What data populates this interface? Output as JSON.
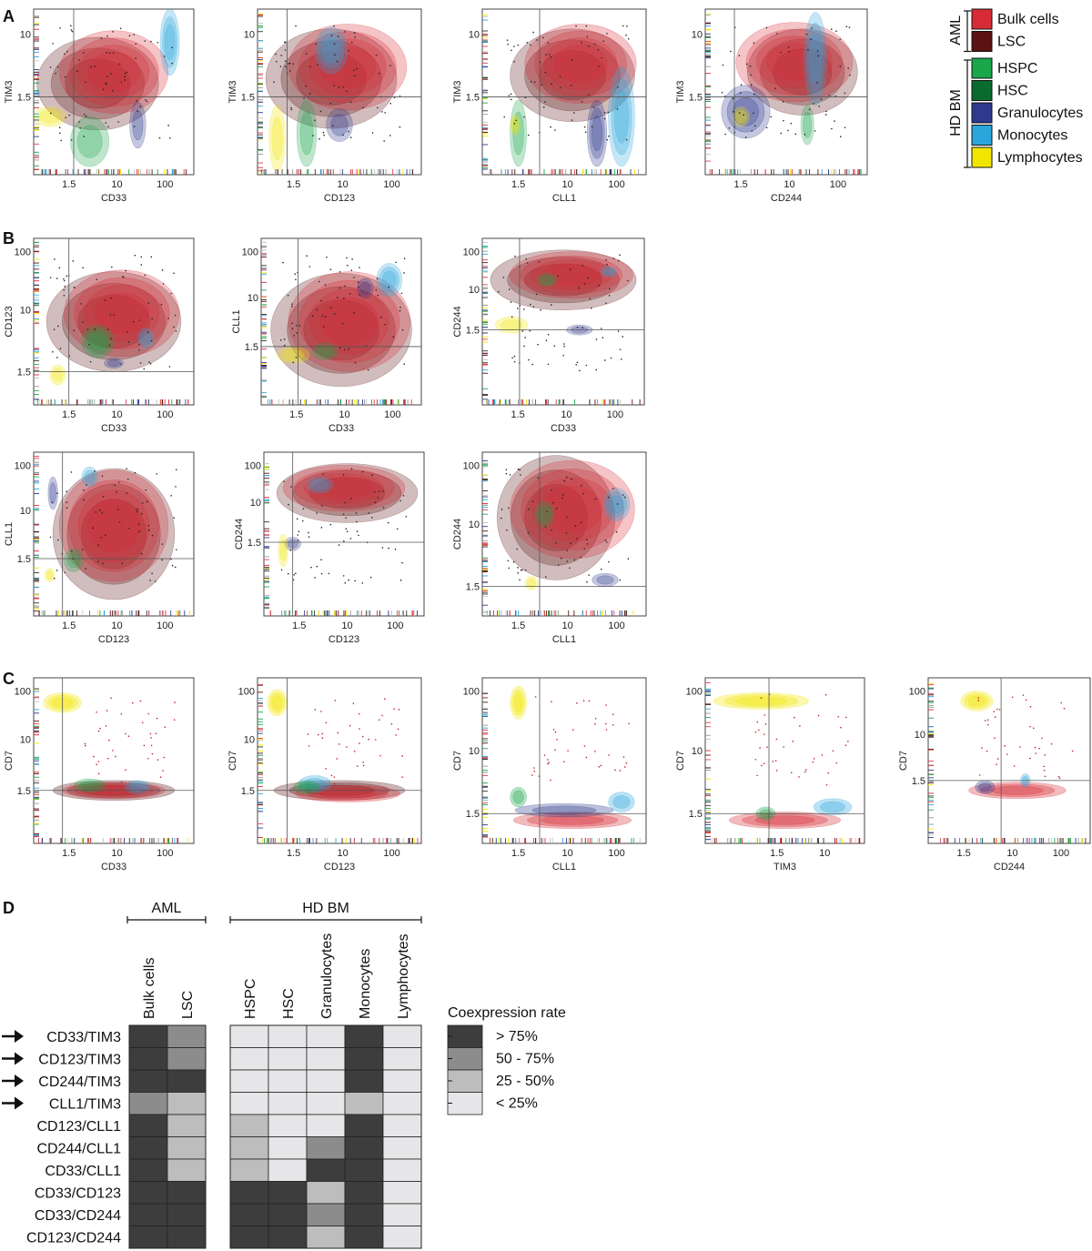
{
  "panel_labels": [
    "A",
    "B",
    "C",
    "D"
  ],
  "legend": {
    "groups": [
      {
        "label": "AML",
        "items": [
          {
            "name": "Bulk cells",
            "color": "#d62b36"
          },
          {
            "name": "LSC",
            "color": "#5a1212"
          }
        ]
      },
      {
        "label": "HD BM",
        "items": [
          {
            "name": "HSPC",
            "color": "#1aa64a"
          },
          {
            "name": "HSC",
            "color": "#0b6b2e"
          },
          {
            "name": "Granulocytes",
            "color": "#2e3a8c"
          },
          {
            "name": "Monocytes",
            "color": "#2aa6dc"
          },
          {
            "name": "Lymphocytes",
            "color": "#f2e600"
          }
        ]
      }
    ]
  },
  "plots": {
    "A": [
      {
        "xlabel": "CD33",
        "ylabel": "TIM3",
        "xticks": [
          "1.5",
          "10",
          "100"
        ],
        "yticks": [
          "1.5",
          "10"
        ]
      },
      {
        "xlabel": "CD123",
        "ylabel": "TIM3",
        "xticks": [
          "1.5",
          "10",
          "100"
        ],
        "yticks": [
          "1.5",
          "10"
        ]
      },
      {
        "xlabel": "CLL1",
        "ylabel": "TIM3",
        "xticks": [
          "1.5",
          "10",
          "100"
        ],
        "yticks": [
          "1.5",
          "10"
        ]
      },
      {
        "xlabel": "CD244",
        "ylabel": "TIM3",
        "xticks": [
          "1.5",
          "10",
          "100"
        ],
        "yticks": [
          "1.5",
          "10"
        ]
      }
    ],
    "B": [
      {
        "xlabel": "CD33",
        "ylabel": "CD123",
        "xticks": [
          "1.5",
          "10",
          "100"
        ],
        "yticks": [
          "1.5",
          "10",
          "100"
        ]
      },
      {
        "xlabel": "CD33",
        "ylabel": "CLL1",
        "xticks": [
          "1.5",
          "10",
          "100"
        ],
        "yticks": [
          "1.5",
          "10",
          "100"
        ]
      },
      {
        "xlabel": "CD33",
        "ylabel": "CD244",
        "xticks": [
          "1.5",
          "10",
          "100"
        ],
        "yticks": [
          "1.5",
          "10",
          "100"
        ]
      },
      {
        "xlabel": "CD123",
        "ylabel": "CLL1",
        "xticks": [
          "1.5",
          "10",
          "100"
        ],
        "yticks": [
          "1.5",
          "10",
          "100"
        ]
      },
      {
        "xlabel": "CD123",
        "ylabel": "CD244",
        "xticks": [
          "1.5",
          "10",
          "100"
        ],
        "yticks": [
          "1.5",
          "10",
          "100"
        ]
      },
      {
        "xlabel": "CLL1",
        "ylabel": "CD244",
        "xticks": [
          "1.5",
          "10",
          "100"
        ],
        "yticks": [
          "1.5",
          "10",
          "100"
        ]
      }
    ],
    "C": [
      {
        "xlabel": "CD33",
        "ylabel": "CD7",
        "xticks": [
          "1.5",
          "10",
          "100"
        ],
        "yticks": [
          "1.5",
          "10",
          "100"
        ]
      },
      {
        "xlabel": "CD123",
        "ylabel": "CD7",
        "xticks": [
          "1.5",
          "10",
          "100"
        ],
        "yticks": [
          "1.5",
          "10",
          "100"
        ]
      },
      {
        "xlabel": "CLL1",
        "ylabel": "CD7",
        "xticks": [
          "1.5",
          "10",
          "100"
        ],
        "yticks": [
          "1.5",
          "10",
          "100"
        ]
      },
      {
        "xlabel": "TIM3",
        "ylabel": "CD7",
        "xticks": [
          "1.5",
          "10"
        ],
        "yticks": [
          "1.5",
          "10",
          "100"
        ]
      },
      {
        "xlabel": "CD244",
        "ylabel": "CD7",
        "xticks": [
          "1.5",
          "10",
          "100"
        ],
        "yticks": [
          "1.5",
          "10",
          "100"
        ]
      }
    ]
  },
  "chart_data": {
    "type": "heatmap",
    "title": "",
    "group_labels": [
      "AML",
      "HD BM"
    ],
    "columns": [
      "Bulk cells",
      "LSC",
      "HSPC",
      "HSC",
      "Granulocytes",
      "Monocytes",
      "Lymphocytes"
    ],
    "rows": [
      "CD33/TIM3",
      "CD123/TIM3",
      "CD244/TIM3",
      "CLL1/TIM3",
      "CD123/CLL1",
      "CD244/CLL1",
      "CD33/CLL1",
      "CD33/CD123",
      "CD33/CD244",
      "CD123/CD244"
    ],
    "arrow_rows": [
      "CD33/TIM3",
      "CD123/TIM3",
      "CD244/TIM3",
      "CLL1/TIM3"
    ],
    "values": [
      [
        ">75%",
        "50-75%",
        "<25%",
        "<25%",
        "<25%",
        ">75%",
        "<25%"
      ],
      [
        ">75%",
        "50-75%",
        "<25%",
        "<25%",
        "<25%",
        ">75%",
        "<25%"
      ],
      [
        ">75%",
        ">75%",
        "<25%",
        "<25%",
        "<25%",
        ">75%",
        "<25%"
      ],
      [
        "50-75%",
        "25-50%",
        "<25%",
        "<25%",
        "<25%",
        "25-50%",
        "<25%"
      ],
      [
        ">75%",
        "25-50%",
        "25-50%",
        "<25%",
        "<25%",
        ">75%",
        "<25%"
      ],
      [
        ">75%",
        "25-50%",
        "25-50%",
        "<25%",
        "50-75%",
        ">75%",
        "<25%"
      ],
      [
        ">75%",
        "25-50%",
        "25-50%",
        "<25%",
        ">75%",
        ">75%",
        "<25%"
      ],
      [
        ">75%",
        ">75%",
        ">75%",
        ">75%",
        "25-50%",
        ">75%",
        "<25%"
      ],
      [
        ">75%",
        ">75%",
        ">75%",
        ">75%",
        "50-75%",
        ">75%",
        "<25%"
      ],
      [
        ">75%",
        ">75%",
        ">75%",
        ">75%",
        "25-50%",
        ">75%",
        "<25%"
      ]
    ],
    "legend_title": "Coexpression rate",
    "legend": [
      {
        "key": ">75%",
        "label": "> 75%",
        "color": "#3d3d3d"
      },
      {
        "key": "50-75%",
        "label": "50 - 75%",
        "color": "#8c8c8c"
      },
      {
        "key": "25-50%",
        "label": "25 - 50%",
        "color": "#bdbdbd"
      },
      {
        "key": "<25%",
        "label": "< 25%",
        "color": "#e6e6e8"
      }
    ]
  }
}
